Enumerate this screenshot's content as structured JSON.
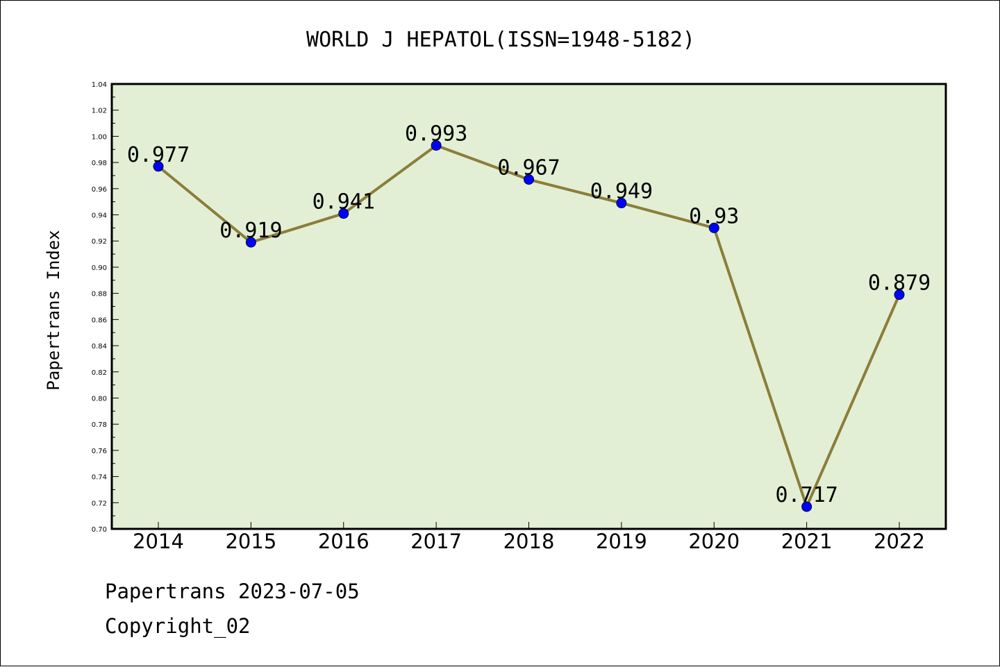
{
  "chart_data": {
    "type": "line",
    "title": "WORLD J HEPATOL(ISSN=1948-5182)",
    "xlabel": "",
    "ylabel": "Papertrans Index",
    "categories": [
      "2014",
      "2015",
      "2016",
      "2017",
      "2018",
      "2019",
      "2020",
      "2021",
      "2022"
    ],
    "series": [
      {
        "values": [
          0.977,
          0.919,
          0.941,
          0.993,
          0.967,
          0.949,
          0.93,
          0.717,
          0.879
        ],
        "labels": [
          "0.977",
          "0.919",
          "0.941",
          "0.993",
          "0.967",
          "0.949",
          "0.93",
          "0.717",
          "0.879"
        ]
      }
    ],
    "ylim": [
      0.7,
      1.04
    ],
    "yticks": [
      "0.70",
      "0.72",
      "0.74",
      "0.76",
      "0.78",
      "0.80",
      "0.82",
      "0.84",
      "0.86",
      "0.88",
      "0.90",
      "0.92",
      "0.94",
      "0.96",
      "0.98",
      "1.00",
      "1.02",
      "1.04"
    ],
    "grid": false,
    "legend": "none",
    "colors": {
      "plot_background": "#e2efd5",
      "line": "#8b7d3a",
      "marker": "#0000ff",
      "frame": "#000000"
    }
  },
  "footer": {
    "source": "Papertrans 2023-07-05",
    "copyright": "Copyright_02"
  }
}
